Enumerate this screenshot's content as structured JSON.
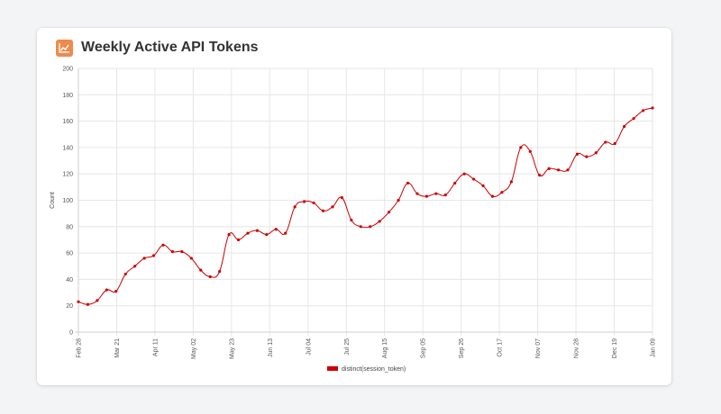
{
  "card": {
    "title": "Weekly Active API Tokens",
    "icon": "line-chart-icon",
    "icon_color": "#f08a4b"
  },
  "chart_data": {
    "type": "line",
    "title": "Weekly Active API Tokens",
    "xlabel": "",
    "ylabel": "Count",
    "ylim": [
      0,
      200
    ],
    "yticks": [
      0,
      20,
      40,
      60,
      80,
      100,
      120,
      140,
      160,
      180,
      200
    ],
    "xtick_labels": [
      "Feb 28",
      "Mar 21",
      "Apr 11",
      "May 02",
      "May 23",
      "Jun 13",
      "Jul 04",
      "Jul 25",
      "Aug 15",
      "Sep 05",
      "Sep 26",
      "Oct 17",
      "Nov 07",
      "Nov 28",
      "Dec 19",
      "Jan 09"
    ],
    "grid": true,
    "legend": "bottom-center",
    "line_color": "#cc0000",
    "series": [
      {
        "name": "distinct(session_token)",
        "values": [
          23,
          21,
          24,
          32,
          31,
          44,
          50,
          56,
          58,
          66,
          61,
          61,
          56,
          47,
          42,
          46,
          74,
          70,
          75,
          77,
          74,
          78,
          75,
          95,
          99,
          98,
          92,
          95,
          102,
          85,
          80,
          80,
          84,
          91,
          100,
          113,
          105,
          103,
          105,
          104,
          113,
          120,
          116,
          111,
          103,
          106,
          114,
          140,
          137,
          119,
          124,
          123,
          123,
          135,
          133,
          136,
          144,
          143,
          156,
          162,
          168,
          170
        ]
      }
    ]
  }
}
